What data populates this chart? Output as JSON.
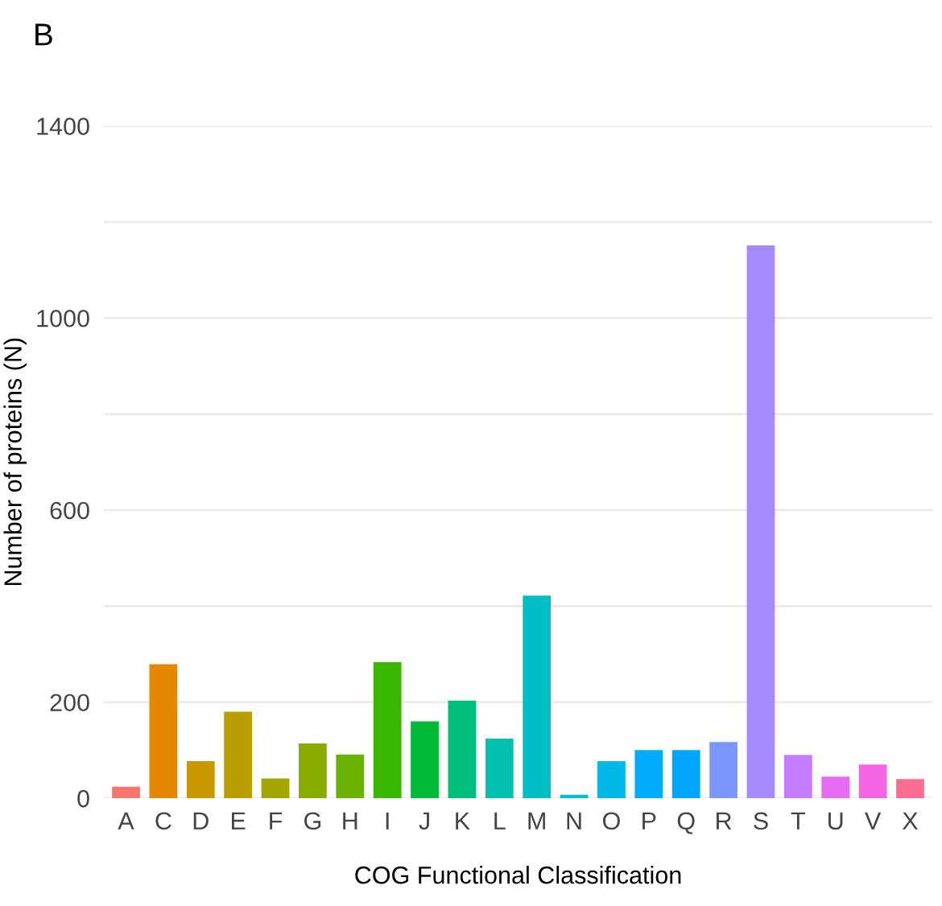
{
  "chart_data": {
    "type": "bar",
    "title": "B",
    "xlabel": "COG Functional Classification",
    "ylabel": "Number of proteins (N)",
    "categories": [
      "A",
      "C",
      "D",
      "E",
      "F",
      "G",
      "H",
      "I",
      "J",
      "K",
      "L",
      "M",
      "N",
      "O",
      "P",
      "Q",
      "R",
      "S",
      "T",
      "U",
      "V",
      "X"
    ],
    "values": [
      24,
      279,
      77,
      180,
      41,
      114,
      91,
      283,
      160,
      203,
      124,
      422,
      7,
      77,
      100,
      100,
      117,
      1151,
      90,
      45,
      70,
      40
    ],
    "colors": [
      "#F8766D",
      "#E58700",
      "#C99800",
      "#B99E00",
      "#A3A500",
      "#8AAB00",
      "#6BB100",
      "#39B600",
      "#00BA38",
      "#00BF7D",
      "#00C0AF",
      "#00BFC4",
      "#00BCD8",
      "#00B8E7",
      "#00ABFD",
      "#00A5FF",
      "#7997FF",
      "#A58AFF",
      "#C77CFF",
      "#E76BF3",
      "#F564E3",
      "#FF6C91"
    ],
    "ylim": [
      0,
      1400
    ],
    "yticks": [
      0,
      200,
      {
        "value": 400,
        "label": null
      },
      600,
      {
        "value": 800,
        "label": null
      },
      1000,
      {
        "value": 1200,
        "label": null
      },
      1400
    ],
    "grid": "y"
  }
}
